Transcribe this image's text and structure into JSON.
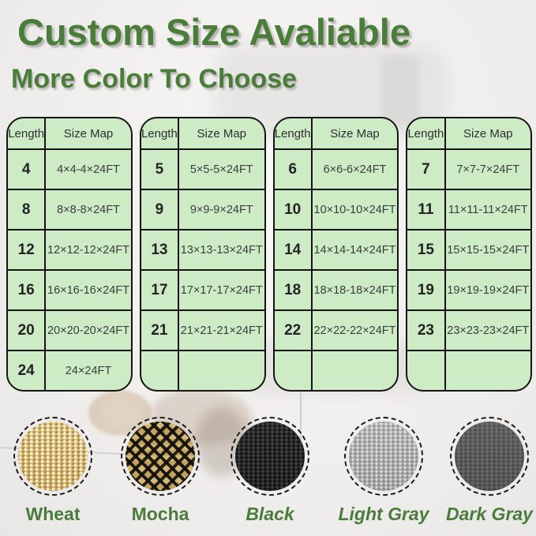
{
  "title": "Custom Size Avaliable",
  "subtitle": "More Color To Choose",
  "colors": {
    "heading_green": "#4a7c3a",
    "table_background": "#cdecc6",
    "table_border": "#141414",
    "swatch_wheat": "#d8bb7a",
    "swatch_mocha": "#17130e",
    "swatch_black": "#2b2b2b",
    "swatch_light_gray": "#b5b5b3",
    "swatch_dark_gray": "#5f5f5f"
  },
  "tables": [
    {
      "headers": [
        "Length",
        "Size Map"
      ],
      "rows": [
        [
          "4",
          "4×4-4×24FT"
        ],
        [
          "8",
          "8×8-8×24FT"
        ],
        [
          "12",
          "12×12-12×24FT"
        ],
        [
          "16",
          "16×16-16×24FT"
        ],
        [
          "20",
          "20×20-20×24FT"
        ],
        [
          "24",
          "24×24FT"
        ]
      ]
    },
    {
      "headers": [
        "Length",
        "Size Map"
      ],
      "rows": [
        [
          "5",
          "5×5-5×24FT"
        ],
        [
          "9",
          "9×9-9×24FT"
        ],
        [
          "13",
          "13×13-13×24FT"
        ],
        [
          "17",
          "17×17-17×24FT"
        ],
        [
          "21",
          "21×21-21×24FT"
        ],
        [
          "",
          ""
        ]
      ]
    },
    {
      "headers": [
        "Length",
        "Size Map"
      ],
      "rows": [
        [
          "6",
          "6×6-6×24FT"
        ],
        [
          "10",
          "10×10-10×24FT"
        ],
        [
          "14",
          "14×14-14×24FT"
        ],
        [
          "18",
          "18×18-18×24FT"
        ],
        [
          "22",
          "22×22-22×24FT"
        ],
        [
          "",
          ""
        ]
      ]
    },
    {
      "headers": [
        "Length",
        "Size Map"
      ],
      "rows": [
        [
          "7",
          "7×7-7×24FT"
        ],
        [
          "11",
          "11×11-11×24FT"
        ],
        [
          "15",
          "15×15-15×24FT"
        ],
        [
          "19",
          "19×19-19×24FT"
        ],
        [
          "23",
          "23×23-23×24FT"
        ],
        [
          "",
          ""
        ]
      ]
    }
  ],
  "swatches": [
    {
      "id": "wheat",
      "label": "Wheat",
      "base_color": "#d8bb7a"
    },
    {
      "id": "mocha",
      "label": "Mocha",
      "base_color": "#17130e"
    },
    {
      "id": "black",
      "label": "Black",
      "base_color": "#2b2b2b"
    },
    {
      "id": "light-gray",
      "label": "Light Gray",
      "base_color": "#b5b5b3"
    },
    {
      "id": "dark-gray",
      "label": "Dark Gray",
      "base_color": "#5f5f5f"
    }
  ]
}
